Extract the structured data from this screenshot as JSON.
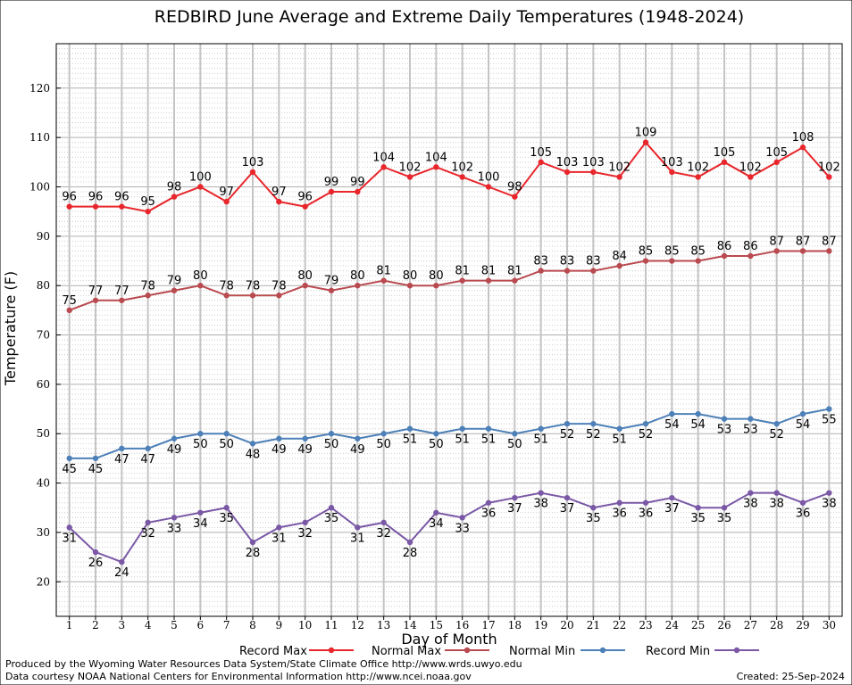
{
  "chart_data": {
    "type": "line",
    "title": "REDBIRD June Average and Extreme Daily Temperatures (1948-2024)",
    "xlabel": "Day of Month",
    "ylabel": "Temperature (F)",
    "x": [
      1,
      2,
      3,
      4,
      5,
      6,
      7,
      8,
      9,
      10,
      11,
      12,
      13,
      14,
      15,
      16,
      17,
      18,
      19,
      20,
      21,
      22,
      23,
      24,
      25,
      26,
      27,
      28,
      29,
      30
    ],
    "xlim": [
      0.5,
      30.5
    ],
    "ylim": [
      13,
      129
    ],
    "yticks": [
      20,
      30,
      40,
      50,
      60,
      70,
      80,
      90,
      100,
      110,
      120
    ],
    "grid": true,
    "legend_position": "bottom",
    "series": [
      {
        "name": "Record Max",
        "color": "#e8262b",
        "label_position": "above",
        "values": [
          96,
          96,
          96,
          95,
          98,
          100,
          97,
          103,
          97,
          96,
          99,
          99,
          104,
          102,
          104,
          102,
          100,
          98,
          105,
          103,
          103,
          102,
          109,
          103,
          102,
          105,
          102,
          105,
          108,
          102
        ]
      },
      {
        "name": "Normal Max",
        "color": "#b94a4f",
        "label_position": "above",
        "values": [
          75,
          77,
          77,
          78,
          79,
          80,
          78,
          78,
          78,
          80,
          79,
          80,
          81,
          80,
          80,
          81,
          81,
          81,
          83,
          83,
          83,
          84,
          85,
          85,
          85,
          86,
          86,
          87,
          87,
          87
        ]
      },
      {
        "name": "Normal Min",
        "color": "#4d80b8",
        "label_position": "below",
        "values": [
          45,
          45,
          47,
          47,
          49,
          50,
          50,
          48,
          49,
          49,
          50,
          49,
          50,
          51,
          50,
          51,
          51,
          50,
          51,
          52,
          52,
          51,
          52,
          54,
          54,
          53,
          53,
          52,
          54,
          55
        ]
      },
      {
        "name": "Record Min",
        "color": "#7a58a6",
        "label_position": "below",
        "values": [
          31,
          26,
          24,
          32,
          33,
          34,
          35,
          28,
          31,
          32,
          35,
          31,
          32,
          28,
          34,
          33,
          36,
          37,
          38,
          37,
          35,
          36,
          36,
          37,
          35,
          35,
          38,
          38,
          36,
          38
        ]
      }
    ]
  },
  "footer": {
    "produced_by": "Produced by the Wyoming Water Resources Data System/State Climate Office http://www.wrds.uwyo.edu",
    "data_courtesy": "Data courtesy NOAA National Centers for Environmental Information http://www.ncei.noaa.gov",
    "created": "Created:  25-Sep-2024"
  }
}
